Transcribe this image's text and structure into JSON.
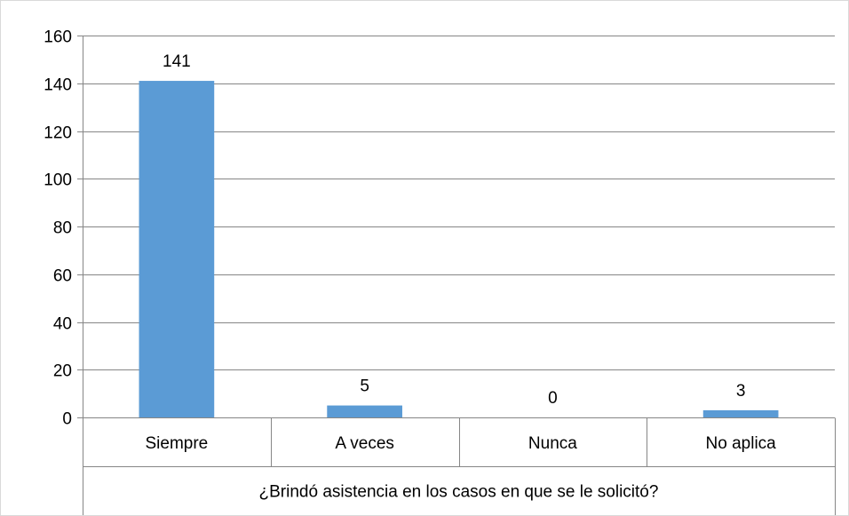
{
  "chart_data": {
    "type": "bar",
    "categories": [
      "Siempre",
      "A veces",
      "Nunca",
      "No aplica"
    ],
    "values": [
      141,
      5,
      0,
      3
    ],
    "data_labels": [
      "141",
      "5",
      "0",
      "3"
    ],
    "xlabel": "¿Brindó asistencia en los casos en que se le solicitó?",
    "ylabel": "",
    "ylim": [
      0,
      160
    ],
    "yticks": [
      0,
      20,
      40,
      60,
      80,
      100,
      120,
      140,
      160
    ],
    "grid": true,
    "legend": "none",
    "bar_color": "#5b9bd5",
    "gridline_color": "#868686"
  }
}
